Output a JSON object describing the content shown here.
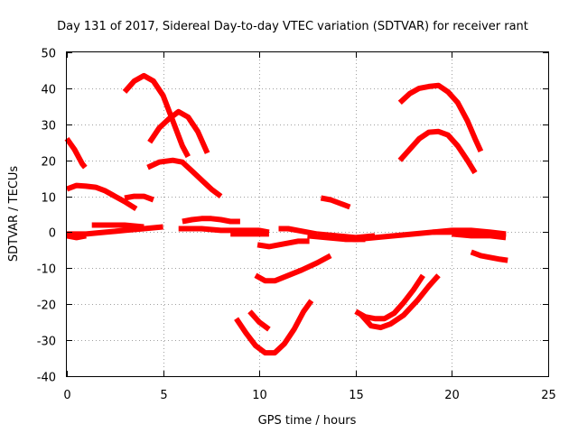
{
  "chart_data": {
    "type": "line",
    "title": "Day 131 of 2017, Sidereal Day-to-day VTEC variation (SDTVAR) for receiver rant",
    "xlabel": "GPS time / hours",
    "ylabel": "SDTVAR / TECUs",
    "xlim": [
      0,
      25
    ],
    "ylim": [
      -40,
      50
    ],
    "xticks": [
      0,
      5,
      10,
      15,
      20,
      25
    ],
    "yticks": [
      -40,
      -30,
      -20,
      -10,
      0,
      10,
      20,
      30,
      40,
      50
    ],
    "grid": true,
    "legend": "none",
    "color": "#ff0000",
    "series": [
      {
        "points": [
          [
            3.0,
            39
          ],
          [
            3.5,
            42
          ],
          [
            4.0,
            43.5
          ],
          [
            4.5,
            42
          ],
          [
            5.0,
            38
          ],
          [
            5.5,
            31
          ],
          [
            6.0,
            24
          ],
          [
            6.3,
            21
          ]
        ]
      },
      {
        "points": [
          [
            4.3,
            25
          ],
          [
            4.8,
            29
          ],
          [
            5.3,
            31.5
          ],
          [
            5.8,
            33.5
          ],
          [
            6.3,
            32
          ],
          [
            6.8,
            28
          ],
          [
            7.3,
            22
          ]
        ]
      },
      {
        "points": [
          [
            4.2,
            18
          ],
          [
            4.8,
            19.5
          ],
          [
            5.5,
            20
          ],
          [
            6.0,
            19.5
          ],
          [
            6.5,
            17
          ],
          [
            7.0,
            14.5
          ],
          [
            7.5,
            12
          ],
          [
            8.0,
            10
          ]
        ]
      },
      {
        "points": [
          [
            0,
            26
          ],
          [
            0.4,
            23
          ],
          [
            0.8,
            19
          ],
          [
            0.95,
            18
          ]
        ]
      },
      {
        "points": [
          [
            0,
            12
          ],
          [
            0.5,
            13
          ],
          [
            1.0,
            12.8
          ],
          [
            1.5,
            12.5
          ],
          [
            2.0,
            11.5
          ],
          [
            2.5,
            10
          ],
          [
            3.0,
            8.5
          ],
          [
            3.6,
            6.5
          ]
        ]
      },
      {
        "points": [
          [
            3.0,
            9.5
          ],
          [
            3.5,
            10
          ],
          [
            4.0,
            10
          ],
          [
            4.5,
            9
          ]
        ]
      },
      {
        "points": [
          [
            0,
            -0.5
          ],
          [
            1.0,
            -0.5
          ],
          [
            2.0,
            0
          ],
          [
            3.0,
            0.5
          ],
          [
            4.0,
            1
          ],
          [
            5.0,
            1.5
          ]
        ]
      },
      {
        "points": [
          [
            1.3,
            2
          ],
          [
            2.0,
            2
          ],
          [
            3.0,
            2
          ],
          [
            4.0,
            1.5
          ]
        ]
      },
      {
        "points": [
          [
            0,
            -1
          ],
          [
            0.5,
            -1.5
          ],
          [
            1.0,
            -1
          ]
        ]
      },
      {
        "points": [
          [
            6.0,
            3
          ],
          [
            6.5,
            3.5
          ],
          [
            7.0,
            3.8
          ],
          [
            7.5,
            3.8
          ],
          [
            8.0,
            3.5
          ],
          [
            8.5,
            3
          ],
          [
            9.0,
            3
          ]
        ]
      },
      {
        "points": [
          [
            5.8,
            1
          ],
          [
            7.0,
            1
          ],
          [
            8.0,
            0.5
          ],
          [
            9.0,
            0.5
          ],
          [
            10.0,
            0.5
          ],
          [
            10.5,
            0
          ]
        ]
      },
      {
        "points": [
          [
            8.5,
            -0.5
          ],
          [
            9.5,
            -0.5
          ],
          [
            10.5,
            -0.5
          ]
        ]
      },
      {
        "points": [
          [
            9.5,
            -22
          ],
          [
            10.0,
            -25
          ],
          [
            10.5,
            -27
          ]
        ]
      },
      {
        "points": [
          [
            8.8,
            -24
          ],
          [
            9.3,
            -28
          ],
          [
            9.8,
            -31.5
          ],
          [
            10.3,
            -33.5
          ],
          [
            10.8,
            -33.5
          ],
          [
            11.3,
            -31
          ],
          [
            11.8,
            -27
          ],
          [
            12.3,
            -22
          ],
          [
            12.7,
            -19
          ]
        ]
      },
      {
        "points": [
          [
            9.8,
            -12
          ],
          [
            10.3,
            -13.5
          ],
          [
            10.8,
            -13.5
          ],
          [
            11.5,
            -12
          ],
          [
            12.2,
            -10.5
          ],
          [
            13.0,
            -8.5
          ],
          [
            13.7,
            -6.5
          ]
        ]
      },
      {
        "points": [
          [
            9.9,
            -3.5
          ],
          [
            10.5,
            -4
          ],
          [
            11.0,
            -3.5
          ],
          [
            11.5,
            -3
          ],
          [
            12.0,
            -2.5
          ],
          [
            12.6,
            -2.5
          ]
        ]
      },
      {
        "points": [
          [
            11.0,
            1
          ],
          [
            11.5,
            1
          ],
          [
            12.0,
            0.5
          ],
          [
            12.5,
            0
          ],
          [
            13.0,
            -0.5
          ]
        ]
      },
      {
        "points": [
          [
            13.0,
            -1
          ],
          [
            14.0,
            -1.5
          ],
          [
            15.0,
            -2
          ],
          [
            16.0,
            -1.5
          ],
          [
            17.0,
            -1
          ],
          [
            18.0,
            -0.5
          ],
          [
            19.0,
            0
          ],
          [
            20.0,
            0
          ],
          [
            21.0,
            0
          ],
          [
            22.0,
            -0.5
          ],
          [
            22.8,
            -1
          ]
        ]
      },
      {
        "points": [
          [
            12.5,
            -1
          ],
          [
            13.5,
            -1.5
          ],
          [
            14.5,
            -2
          ],
          [
            15.5,
            -2
          ]
        ]
      },
      {
        "points": [
          [
            13.2,
            9.5
          ],
          [
            13.7,
            9
          ],
          [
            14.2,
            8
          ],
          [
            14.7,
            7
          ]
        ]
      },
      {
        "points": [
          [
            13.0,
            -0.5
          ],
          [
            14.0,
            -1
          ],
          [
            15.0,
            -1.5
          ],
          [
            16.0,
            -1
          ]
        ]
      },
      {
        "points": [
          [
            15.0,
            -22
          ],
          [
            15.5,
            -23.5
          ],
          [
            16.0,
            -24
          ],
          [
            16.5,
            -24
          ],
          [
            17.0,
            -22.5
          ],
          [
            17.5,
            -19.5
          ],
          [
            18.0,
            -16
          ],
          [
            18.5,
            -12
          ]
        ]
      },
      {
        "points": [
          [
            15.3,
            -23
          ],
          [
            15.8,
            -26
          ],
          [
            16.3,
            -26.5
          ],
          [
            16.8,
            -25.5
          ],
          [
            17.5,
            -23
          ],
          [
            18.2,
            -19
          ],
          [
            18.8,
            -15
          ],
          [
            19.3,
            -12
          ]
        ]
      },
      {
        "points": [
          [
            17.3,
            20
          ],
          [
            17.8,
            23
          ],
          [
            18.3,
            26
          ],
          [
            18.8,
            27.8
          ],
          [
            19.3,
            28
          ],
          [
            19.8,
            27
          ],
          [
            20.3,
            24
          ],
          [
            20.8,
            20
          ],
          [
            21.2,
            16.5
          ]
        ]
      },
      {
        "points": [
          [
            17.3,
            36
          ],
          [
            17.8,
            38.5
          ],
          [
            18.3,
            40
          ],
          [
            18.8,
            40.5
          ],
          [
            19.3,
            40.8
          ],
          [
            19.8,
            39
          ],
          [
            20.3,
            36
          ],
          [
            20.8,
            31
          ],
          [
            21.2,
            26
          ],
          [
            21.5,
            22.5
          ]
        ]
      },
      {
        "points": [
          [
            19.0,
            0
          ],
          [
            20.0,
            0.5
          ],
          [
            21.0,
            0.5
          ],
          [
            22.0,
            0
          ],
          [
            22.8,
            -0.5
          ]
        ]
      },
      {
        "points": [
          [
            20.0,
            -0.5
          ],
          [
            21.0,
            -1
          ],
          [
            22.0,
            -1
          ],
          [
            22.8,
            -1.5
          ]
        ]
      },
      {
        "points": [
          [
            21.0,
            -5.5
          ],
          [
            21.5,
            -6.5
          ],
          [
            22.0,
            -7
          ],
          [
            22.5,
            -7.5
          ],
          [
            22.9,
            -7.8
          ]
        ]
      }
    ]
  }
}
